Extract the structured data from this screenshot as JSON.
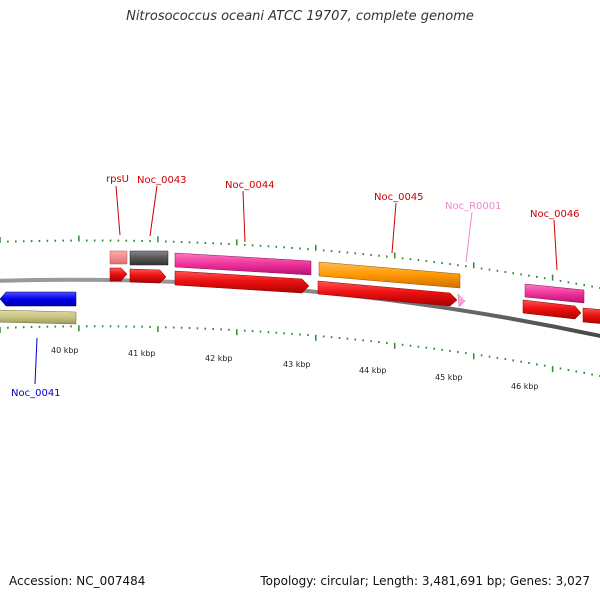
{
  "title": "Nitrosococcus oceani ATCC 19707, complete genome",
  "footer": {
    "accession": "Accession: NC_007484",
    "summary": "Topology: circular; Length: 3,481,691 bp; Genes: 3,027"
  },
  "colors": {
    "background": "#ffffff",
    "backbone": "#8a8a8a",
    "tick": "#2e8b2e",
    "cds": "#ee1111",
    "cds_dark": "#b00000",
    "label_forward": "#cc0000",
    "label_reverse": "#0000cc",
    "label_rna": "#ee88cc",
    "rna": "#ff99cc"
  },
  "scale_labels": [
    "40 kbp",
    "41 kbp",
    "42 kbp",
    "43 kbp",
    "44 kbp",
    "45 kbp",
    "46 kbp"
  ],
  "features": [
    {
      "id": "Noc_0041",
      "label": "Noc_0041",
      "strand": "reverse",
      "type": "gene"
    },
    {
      "id": "rpsU",
      "label": "rpsU",
      "strand": "forward",
      "type": "gene"
    },
    {
      "id": "Noc_0043",
      "label": "Noc_0043",
      "strand": "forward",
      "type": "gene"
    },
    {
      "id": "Noc_0044",
      "label": "Noc_0044",
      "strand": "forward",
      "type": "gene"
    },
    {
      "id": "Noc_0045",
      "label": "Noc_0045",
      "strand": "forward",
      "type": "gene"
    },
    {
      "id": "Noc_R0001",
      "label": "Noc_R0001",
      "strand": "forward",
      "type": "rna"
    },
    {
      "id": "Noc_0046",
      "label": "Noc_0046",
      "strand": "forward",
      "type": "gene"
    }
  ]
}
